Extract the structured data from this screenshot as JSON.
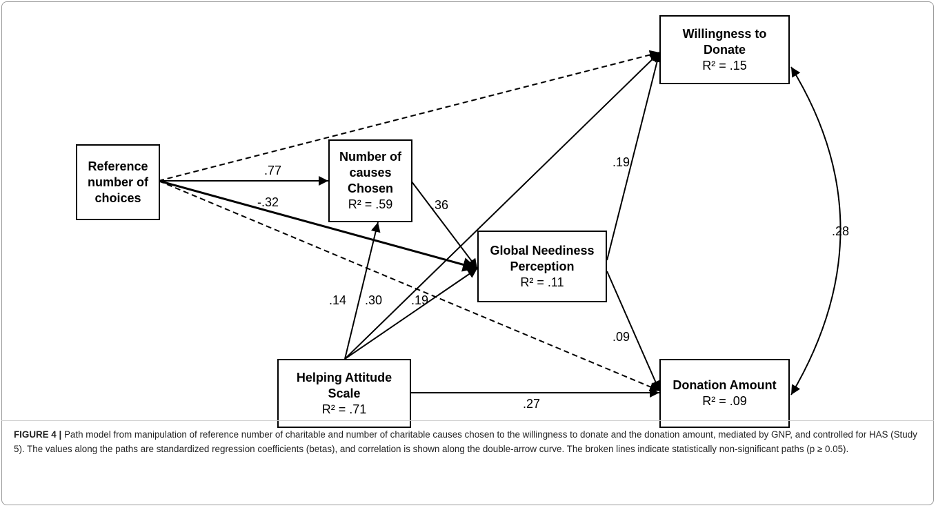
{
  "nodes": {
    "ref": {
      "title": "Reference number of choices",
      "r2": ""
    },
    "num": {
      "title": "Number of causes Chosen",
      "r2": "R² = .59"
    },
    "gnp": {
      "title": "Global Neediness Perception",
      "r2": "R² = .11"
    },
    "has": {
      "title": "Helping Attitude Scale",
      "r2": "R² = .71"
    },
    "wtd": {
      "title": "Willingness to Donate",
      "r2": "R² = .15"
    },
    "don": {
      "title": "Donation Amount",
      "r2": "R² = .09"
    }
  },
  "paths": [
    {
      "from": "ref",
      "to": "num",
      "coef": ".77",
      "significant": true
    },
    {
      "from": "ref",
      "to": "gnp",
      "coef": "-.32",
      "significant": true
    },
    {
      "from": "ref",
      "to": "wtd",
      "coef": "",
      "significant": false
    },
    {
      "from": "ref",
      "to": "don",
      "coef": "",
      "significant": false
    },
    {
      "from": "num",
      "to": "gnp",
      "coef": ".36",
      "significant": true
    },
    {
      "from": "has",
      "to": "num",
      "coef": ".14",
      "significant": true
    },
    {
      "from": "has",
      "to": "wtd",
      "coef": ".30",
      "significant": true
    },
    {
      "from": "has",
      "to": "gnp",
      "coef": ".19",
      "significant": true
    },
    {
      "from": "has",
      "to": "don",
      "coef": ".27",
      "significant": true
    },
    {
      "from": "gnp",
      "to": "wtd",
      "coef": ".19",
      "significant": true
    },
    {
      "from": "gnp",
      "to": "don",
      "coef": ".09",
      "significant": true
    }
  ],
  "correlation": {
    "between": [
      "wtd",
      "don"
    ],
    "coef": ".28"
  },
  "caption": {
    "label": "FIGURE 4 |",
    "text": "Path model from manipulation of reference number of charitable and number of charitable causes chosen to the willingness to donate and the donation amount, mediated by GNP, and controlled for HAS (Study 5). The values along the paths are standardized regression coefficients (betas), and correlation is shown along the double-arrow curve. The broken lines indicate statistically non-significant paths (p ≥ 0.05)."
  }
}
